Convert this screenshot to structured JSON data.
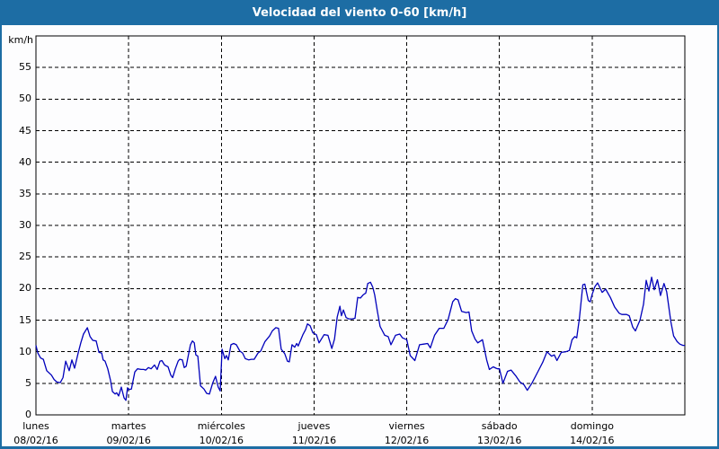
{
  "title_bar": {
    "title": "Velocidad del viento 0-60 [km/h]"
  },
  "colors": {
    "accent_blue": "#1d6da4",
    "line_blue": "#0000bb",
    "grid_black": "#000000",
    "page_background": "#fdfdfe",
    "plot_background": "#ffffff",
    "title_text": "#ffffff"
  },
  "chart_data": {
    "type": "line",
    "title": "Velocidad del viento 0-60 [km/h]",
    "ylabel": "km/h",
    "ylim": [
      0,
      60
    ],
    "y_tick_step": 5,
    "y_tick_labels": [
      "0",
      "5",
      "10",
      "15",
      "20",
      "25",
      "30",
      "35",
      "40",
      "45",
      "50",
      "55"
    ],
    "grid": "dashed",
    "legend": "none",
    "x_unit": "hours",
    "x_range_hours": [
      0,
      168
    ],
    "x_days": [
      {
        "name": "lunes",
        "date": "08/02/16"
      },
      {
        "name": "martes",
        "date": "09/02/16"
      },
      {
        "name": "miércoles",
        "date": "10/02/16"
      },
      {
        "name": "jueves",
        "date": "11/02/16"
      },
      {
        "name": "viernes",
        "date": "12/02/16"
      },
      {
        "name": "sábado",
        "date": "13/02/16"
      },
      {
        "name": "domingo",
        "date": "14/02/16"
      }
    ],
    "series": [
      {
        "name": "velocidad del viento",
        "color": "#0000bb",
        "points_h_kmh": [
          [
            0,
            11
          ],
          [
            0.5,
            9.8
          ],
          [
            1.2,
            9
          ],
          [
            1.9,
            8.8
          ],
          [
            2.8,
            7
          ],
          [
            4,
            6.3
          ],
          [
            4.7,
            5.6
          ],
          [
            5.4,
            5.2
          ],
          [
            6.3,
            5.1
          ],
          [
            7,
            5.9
          ],
          [
            7.7,
            8.5
          ],
          [
            8.6,
            7
          ],
          [
            9.3,
            8.7
          ],
          [
            10,
            7.4
          ],
          [
            10.9,
            9.7
          ],
          [
            11.6,
            11.4
          ],
          [
            12.3,
            12.8
          ],
          [
            13.3,
            13.8
          ],
          [
            14,
            12.4
          ],
          [
            14.7,
            11.8
          ],
          [
            15.6,
            11.7
          ],
          [
            16.3,
            9.9
          ],
          [
            17,
            9.8
          ],
          [
            17.4,
            8.7
          ],
          [
            17.9,
            8.5
          ],
          [
            18.6,
            7.3
          ],
          [
            19.3,
            5.5
          ],
          [
            19.8,
            3.7
          ],
          [
            20.5,
            3.3
          ],
          [
            20.9,
            3.5
          ],
          [
            21.4,
            3
          ],
          [
            22.1,
            4.4
          ],
          [
            22.8,
            2.7
          ],
          [
            23.3,
            2.3
          ],
          [
            23.7,
            4.3
          ],
          [
            24,
            4
          ],
          [
            24.7,
            4.1
          ],
          [
            25.6,
            6.8
          ],
          [
            26.3,
            7.3
          ],
          [
            27.2,
            7.2
          ],
          [
            27.9,
            7.2
          ],
          [
            28.4,
            7.1
          ],
          [
            29.1,
            7.5
          ],
          [
            29.8,
            7.3
          ],
          [
            30.7,
            7.9
          ],
          [
            31.4,
            7.2
          ],
          [
            32.1,
            8.5
          ],
          [
            32.6,
            8.6
          ],
          [
            33.3,
            7.9
          ],
          [
            34.2,
            7.6
          ],
          [
            34.9,
            6.3
          ],
          [
            35.4,
            5.9
          ],
          [
            36.1,
            7.3
          ],
          [
            36.8,
            8.5
          ],
          [
            37.2,
            8.8
          ],
          [
            37.9,
            8.7
          ],
          [
            38.4,
            7.5
          ],
          [
            38.9,
            7.7
          ],
          [
            39.6,
            9.9
          ],
          [
            40,
            11.1
          ],
          [
            40.5,
            11.7
          ],
          [
            41,
            11.4
          ],
          [
            41.4,
            9.5
          ],
          [
            41.9,
            9.3
          ],
          [
            42.6,
            4.6
          ],
          [
            43.5,
            4.1
          ],
          [
            44.2,
            3.4
          ],
          [
            44.9,
            3.3
          ],
          [
            45.8,
            5.1
          ],
          [
            46.5,
            6.1
          ],
          [
            47.2,
            4.4
          ],
          [
            47.7,
            3.8
          ],
          [
            48.2,
            10.4
          ],
          [
            48.9,
            8.9
          ],
          [
            49.3,
            9.4
          ],
          [
            49.8,
            8.7
          ],
          [
            50.5,
            11.1
          ],
          [
            51.2,
            11.3
          ],
          [
            51.9,
            11.1
          ],
          [
            52.8,
            10.1
          ],
          [
            53.5,
            9.8
          ],
          [
            54.2,
            8.9
          ],
          [
            55.1,
            8.7
          ],
          [
            55.8,
            8.8
          ],
          [
            56.5,
            8.8
          ],
          [
            57.5,
            9.8
          ],
          [
            58.2,
            10.1
          ],
          [
            59.3,
            11.6
          ],
          [
            60.5,
            12.5
          ],
          [
            61.2,
            13.3
          ],
          [
            62.1,
            13.8
          ],
          [
            62.8,
            13.7
          ],
          [
            63.5,
            10.4
          ],
          [
            64.4,
            9.7
          ],
          [
            65.1,
            8.5
          ],
          [
            65.6,
            8.4
          ],
          [
            66.3,
            11.1
          ],
          [
            67,
            10.7
          ],
          [
            67.5,
            11.3
          ],
          [
            67.9,
            10.9
          ],
          [
            69.1,
            12.7
          ],
          [
            69.8,
            13.5
          ],
          [
            70.3,
            14.4
          ],
          [
            71,
            14.1
          ],
          [
            71.7,
            13
          ],
          [
            72,
            12.9
          ],
          [
            72.6,
            12.7
          ],
          [
            73.3,
            11.4
          ],
          [
            74.6,
            12.7
          ],
          [
            75.6,
            12.6
          ],
          [
            76.6,
            10.5
          ],
          [
            77.3,
            12
          ],
          [
            78,
            15.5
          ],
          [
            78.7,
            17.2
          ],
          [
            79.1,
            15.7
          ],
          [
            79.6,
            16.6
          ],
          [
            80.3,
            15.4
          ],
          [
            81,
            15.2
          ],
          [
            81.9,
            15.2
          ],
          [
            82.6,
            15.3
          ],
          [
            83.3,
            18.6
          ],
          [
            84,
            18.5
          ],
          [
            84.7,
            19
          ],
          [
            85.4,
            19.3
          ],
          [
            85.9,
            20.8
          ],
          [
            86.6,
            21
          ],
          [
            87.2,
            20.2
          ],
          [
            87.7,
            19
          ],
          [
            88.4,
            16.4
          ],
          [
            89.1,
            14
          ],
          [
            90.3,
            12.6
          ],
          [
            91.2,
            12.4
          ],
          [
            91.9,
            11.1
          ],
          [
            93.1,
            12.6
          ],
          [
            94.2,
            12.8
          ],
          [
            94.9,
            12.2
          ],
          [
            96,
            11.9
          ],
          [
            96.9,
            9.4
          ],
          [
            98.1,
            8.6
          ],
          [
            99.3,
            11.1
          ],
          [
            100.4,
            11.2
          ],
          [
            101.4,
            11.3
          ],
          [
            102.1,
            10.6
          ],
          [
            103.2,
            12.6
          ],
          [
            104.4,
            13.7
          ],
          [
            105.6,
            13.7
          ],
          [
            106.7,
            15.1
          ],
          [
            107.9,
            17.9
          ],
          [
            108.6,
            18.4
          ],
          [
            109.3,
            18.2
          ],
          [
            110.2,
            16.4
          ],
          [
            111.4,
            16.2
          ],
          [
            112.1,
            16.3
          ],
          [
            112.8,
            13.3
          ],
          [
            113.7,
            12
          ],
          [
            114.4,
            11.4
          ],
          [
            115.6,
            11.9
          ],
          [
            116.7,
            8.7
          ],
          [
            117.4,
            7.2
          ],
          [
            118.4,
            7.6
          ],
          [
            119.1,
            7.4
          ],
          [
            119.5,
            7.3
          ],
          [
            120,
            7.3
          ],
          [
            120.9,
            5
          ],
          [
            122.1,
            6.9
          ],
          [
            123,
            7.1
          ],
          [
            124.2,
            6.2
          ],
          [
            125.3,
            5.2
          ],
          [
            126.3,
            4.8
          ],
          [
            127.2,
            3.9
          ],
          [
            128.4,
            5
          ],
          [
            130,
            6.9
          ],
          [
            131.2,
            8.3
          ],
          [
            132.3,
            10
          ],
          [
            133.5,
            9.3
          ],
          [
            134.2,
            9.5
          ],
          [
            134.9,
            8.6
          ],
          [
            136,
            9.9
          ],
          [
            137.2,
            10
          ],
          [
            138.1,
            10.2
          ],
          [
            138.8,
            11.9
          ],
          [
            139.5,
            12.4
          ],
          [
            140,
            12.2
          ],
          [
            140.7,
            15.3
          ],
          [
            141.6,
            20.6
          ],
          [
            142.1,
            20.7
          ],
          [
            143,
            18.1
          ],
          [
            143.5,
            17.9
          ],
          [
            144,
            19.1
          ],
          [
            144.7,
            20.3
          ],
          [
            145.4,
            20.9
          ],
          [
            146.6,
            19.4
          ],
          [
            147.5,
            19.9
          ],
          [
            148.7,
            18.6
          ],
          [
            149.8,
            17.1
          ],
          [
            151,
            16.1
          ],
          [
            151.7,
            15.9
          ],
          [
            152.9,
            15.9
          ],
          [
            153.6,
            15.7
          ],
          [
            154.5,
            13.9
          ],
          [
            155.2,
            13.3
          ],
          [
            156.4,
            15
          ],
          [
            157.3,
            17.5
          ],
          [
            158,
            21.3
          ],
          [
            158.7,
            19.6
          ],
          [
            159.4,
            21.8
          ],
          [
            160.1,
            19.8
          ],
          [
            160.9,
            21.4
          ],
          [
            161.7,
            18.9
          ],
          [
            162.6,
            20.8
          ],
          [
            163.3,
            19.5
          ],
          [
            164.4,
            14.7
          ],
          [
            165.1,
            12.5
          ],
          [
            166,
            11.6
          ],
          [
            166.7,
            11.2
          ],
          [
            167.5,
            11
          ],
          [
            168,
            11
          ]
        ]
      }
    ]
  }
}
